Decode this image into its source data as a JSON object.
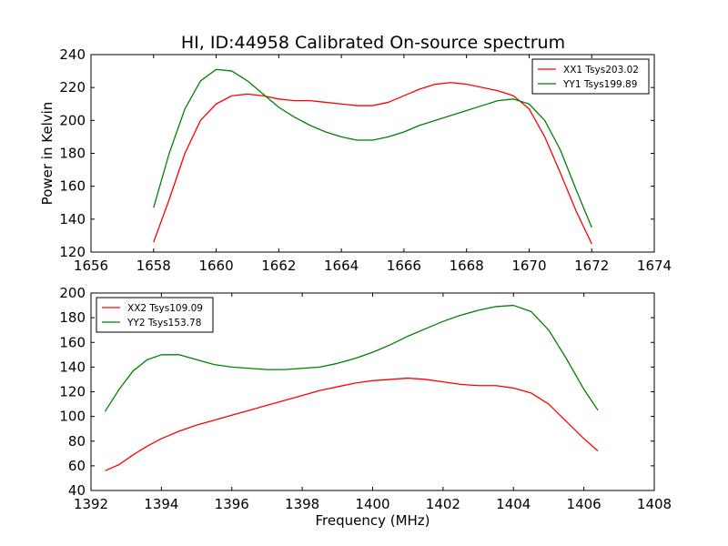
{
  "figure": {
    "title": "HI, ID:44958 Calibrated On-source spectrum",
    "colors": {
      "xx": "#ff0000",
      "yy": "#008000",
      "axes": "#000000",
      "background": "#ffffff"
    }
  },
  "chart_data": [
    {
      "type": "line",
      "title": "HI, ID:44958 Calibrated On-source spectrum",
      "xlabel": "",
      "ylabel": "Power in Kelvin",
      "xlim": [
        1656,
        1674
      ],
      "ylim": [
        120,
        240
      ],
      "xticks": [
        1656,
        1658,
        1660,
        1662,
        1664,
        1666,
        1668,
        1670,
        1672,
        1674
      ],
      "yticks": [
        120,
        140,
        160,
        180,
        200,
        220,
        240
      ],
      "grid": false,
      "legend_placement": "top-right",
      "series": [
        {
          "name": "XX1 Tsys203.02",
          "color": "#ff0000",
          "x": [
            1658.0,
            1658.5,
            1659.0,
            1659.5,
            1660.0,
            1660.5,
            1661.0,
            1661.5,
            1662.0,
            1662.5,
            1663.0,
            1663.5,
            1664.0,
            1664.5,
            1665.0,
            1665.5,
            1666.0,
            1666.5,
            1667.0,
            1667.5,
            1668.0,
            1668.5,
            1669.0,
            1669.5,
            1670.0,
            1670.5,
            1671.0,
            1671.5,
            1672.0
          ],
          "y": [
            126,
            152,
            180,
            200,
            210,
            215,
            216,
            215,
            213,
            212,
            212,
            211,
            210,
            209,
            209,
            211,
            215,
            219,
            222,
            223,
            222,
            220,
            218,
            215,
            207,
            190,
            168,
            145,
            125
          ]
        },
        {
          "name": "YY1 Tsys199.89",
          "color": "#008000",
          "x": [
            1658.0,
            1658.5,
            1659.0,
            1659.5,
            1660.0,
            1660.5,
            1661.0,
            1661.5,
            1662.0,
            1662.5,
            1663.0,
            1663.5,
            1664.0,
            1664.5,
            1665.0,
            1665.5,
            1666.0,
            1666.5,
            1667.0,
            1667.5,
            1668.0,
            1668.5,
            1669.0,
            1669.5,
            1670.0,
            1670.5,
            1671.0,
            1671.5,
            1672.0
          ],
          "y": [
            147,
            180,
            207,
            224,
            231,
            230,
            224,
            216,
            208,
            202,
            197,
            193,
            190,
            188,
            188,
            190,
            193,
            197,
            200,
            203,
            206,
            209,
            212,
            213,
            210,
            200,
            182,
            158,
            135
          ]
        }
      ]
    },
    {
      "type": "line",
      "title": "",
      "xlabel": "Frequency (MHz)",
      "ylabel": "",
      "xlim": [
        1392,
        1408
      ],
      "ylim": [
        40,
        200
      ],
      "xticks": [
        1392,
        1394,
        1396,
        1398,
        1400,
        1402,
        1404,
        1406,
        1408
      ],
      "yticks": [
        40,
        60,
        80,
        100,
        120,
        140,
        160,
        180,
        200
      ],
      "grid": false,
      "legend_placement": "top-left",
      "series": [
        {
          "name": "XX2 Tsys109.09",
          "color": "#ff0000",
          "x": [
            1392.4,
            1392.8,
            1393.2,
            1393.6,
            1394.0,
            1394.5,
            1395.0,
            1395.5,
            1396.0,
            1396.5,
            1397.0,
            1397.5,
            1398.0,
            1398.5,
            1399.0,
            1399.5,
            1400.0,
            1400.5,
            1401.0,
            1401.5,
            1402.0,
            1402.5,
            1403.0,
            1403.5,
            1404.0,
            1404.5,
            1405.0,
            1405.5,
            1406.0,
            1406.4
          ],
          "y": [
            56,
            61,
            69,
            76,
            82,
            88,
            93,
            97,
            101,
            105,
            109,
            113,
            117,
            121,
            124,
            127,
            129,
            130,
            131,
            130,
            128,
            126,
            125,
            125,
            123,
            119,
            110,
            96,
            82,
            72
          ]
        },
        {
          "name": "YY2 Tsys153.78",
          "color": "#008000",
          "x": [
            1392.4,
            1392.8,
            1393.2,
            1393.6,
            1394.0,
            1394.5,
            1395.0,
            1395.5,
            1396.0,
            1396.5,
            1397.0,
            1397.5,
            1398.0,
            1398.5,
            1399.0,
            1399.5,
            1400.0,
            1400.5,
            1401.0,
            1401.5,
            1402.0,
            1402.5,
            1403.0,
            1403.5,
            1404.0,
            1404.5,
            1405.0,
            1405.5,
            1406.0,
            1406.4
          ],
          "y": [
            104,
            122,
            137,
            146,
            150,
            150,
            146,
            142,
            140,
            139,
            138,
            138,
            139,
            140,
            143,
            147,
            152,
            158,
            165,
            171,
            177,
            182,
            186,
            189,
            190,
            185,
            170,
            147,
            122,
            105
          ]
        }
      ]
    }
  ]
}
